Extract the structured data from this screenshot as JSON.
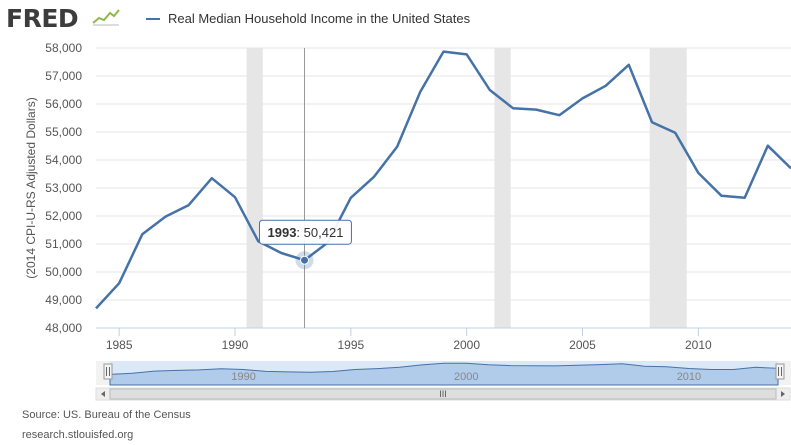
{
  "header": {
    "logo_text": "FRED",
    "logo_icon": "line-chart-icon"
  },
  "colors": {
    "series": "#4572a7",
    "recession": "#e6e6e6",
    "grid": "#e6e6e6",
    "navigator_fill": "#a9c6e8",
    "navigator_window": "#dbe8f7"
  },
  "chart_data": {
    "type": "line",
    "title": "",
    "ylabel": "(2014 CPI-U-RS Adjusted Dollars)",
    "xlabel": "",
    "xlim": [
      1984,
      2014
    ],
    "ylim": [
      48000,
      58000
    ],
    "xticks": [
      "1985",
      "1990",
      "1995",
      "2000",
      "2005",
      "2010"
    ],
    "yticks": [
      "48,000",
      "49,000",
      "50,000",
      "51,000",
      "52,000",
      "53,000",
      "54,000",
      "55,000",
      "56,000",
      "57,000",
      "58,000"
    ],
    "grid": true,
    "legend_position": "top-left",
    "series": [
      {
        "name": "Real Median Household Income in the United States",
        "x": [
          1984,
          1985,
          1986,
          1987,
          1988,
          1989,
          1990,
          1991,
          1992,
          1993,
          1994,
          1995,
          1996,
          1997,
          1998,
          1999,
          2000,
          2001,
          2002,
          2003,
          2004,
          2005,
          2006,
          2007,
          2008,
          2009,
          2010,
          2011,
          2012,
          2013,
          2014
        ],
        "values": [
          48700,
          49600,
          51350,
          51980,
          52390,
          53350,
          52670,
          51100,
          50680,
          50421,
          51050,
          52650,
          53400,
          54480,
          56440,
          57870,
          57770,
          56500,
          55850,
          55800,
          55600,
          56200,
          56650,
          57400,
          55350,
          54970,
          53540,
          52720,
          52650,
          54510,
          53700
        ]
      }
    ],
    "recessions": [
      [
        1990.5,
        1991.2
      ],
      [
        2001.2,
        2001.9
      ],
      [
        2007.9,
        2009.5
      ]
    ],
    "tooltip": {
      "label": "1993",
      "value": "50,421"
    },
    "navigator": {
      "labels": [
        "1990",
        "2000",
        "2010"
      ],
      "handle_label": "III"
    }
  },
  "footer": {
    "source": "Source: US. Bureau of the Census",
    "site": "research.stlouisfed.org"
  }
}
